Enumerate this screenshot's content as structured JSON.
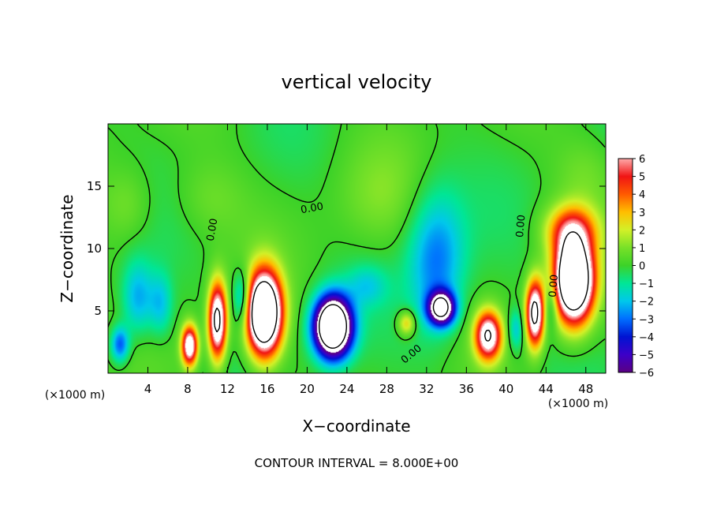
{
  "chart_data": {
    "type": "heatmap",
    "title": "vertical velocity",
    "xlabel": "X−coordinate",
    "ylabel": "Z−coordinate",
    "x_unit_label_left": "(×1000 m)",
    "x_unit_label_right": "(×1000 m)",
    "footer": "CONTOUR INTERVAL = 8.000E+00",
    "xlim": [
      0,
      50
    ],
    "ylim": [
      0,
      20
    ],
    "x_ticks": [
      4,
      8,
      12,
      16,
      20,
      24,
      28,
      32,
      36,
      40,
      44,
      48
    ],
    "y_ticks": [
      5,
      10,
      15
    ],
    "colorbar": {
      "range": [
        -6,
        6
      ],
      "ticks": [
        6,
        5,
        4,
        3,
        2,
        1,
        0,
        -1,
        -2,
        -3,
        -4,
        -5,
        -6
      ],
      "tick_labels": [
        "6",
        "5",
        "4",
        "3",
        "2",
        "1",
        "0",
        "−1",
        "−2",
        "−3",
        "−4",
        "−5",
        "−6"
      ]
    },
    "contour_labels": [
      {
        "text": "0.00",
        "x": 10.5,
        "y": 11.5,
        "rotate": -80
      },
      {
        "text": "0.00",
        "x": 20.5,
        "y": 13.2,
        "rotate": -10
      },
      {
        "text": "0.00",
        "x": 41.5,
        "y": 11.8,
        "rotate": -85
      },
      {
        "text": "0.00",
        "x": 44.8,
        "y": 7.0,
        "rotate": -85
      },
      {
        "text": "0.00",
        "x": 30.5,
        "y": 1.5,
        "rotate": -40
      }
    ],
    "features": [
      {
        "x": 15.7,
        "z": 4.8,
        "sx": 1.7,
        "sz": 3.2,
        "amp": 14
      },
      {
        "x": 11.0,
        "z": 4.2,
        "sx": 0.9,
        "sz": 3.0,
        "amp": 9
      },
      {
        "x": 8.2,
        "z": 2.2,
        "sx": 0.8,
        "sz": 1.6,
        "amp": 8
      },
      {
        "x": 46.8,
        "z": 7.5,
        "sx": 1.9,
        "sz": 3.3,
        "amp": 14
      },
      {
        "x": 46.5,
        "z": 11.5,
        "sx": 2.6,
        "sz": 2.0,
        "amp": 4
      },
      {
        "x": 42.9,
        "z": 4.8,
        "sx": 0.9,
        "sz": 2.6,
        "amp": 9
      },
      {
        "x": 38.2,
        "z": 3.0,
        "sx": 1.3,
        "sz": 1.9,
        "amp": 8
      },
      {
        "x": 30.0,
        "z": 4.0,
        "sx": 0.9,
        "sz": 1.0,
        "amp": 3
      },
      {
        "x": 22.6,
        "z": 3.7,
        "sx": 1.8,
        "sz": 2.3,
        "amp": -14
      },
      {
        "x": 33.5,
        "z": 5.2,
        "sx": 1.3,
        "sz": 1.3,
        "amp": -9
      },
      {
        "x": 33.0,
        "z": 9.0,
        "sx": 2.8,
        "sz": 5.5,
        "amp": -3
      },
      {
        "x": 3.0,
        "z": 6.0,
        "sx": 1.6,
        "sz": 3.0,
        "amp": -2.5
      },
      {
        "x": 1.2,
        "z": 2.3,
        "sx": 0.9,
        "sz": 1.4,
        "amp": -3.5
      },
      {
        "x": 5.3,
        "z": 5.5,
        "sx": 1.2,
        "sz": 2.5,
        "amp": -2
      },
      {
        "x": 13.5,
        "z": 6.0,
        "sx": 0.9,
        "sz": 2.2,
        "amp": -3
      },
      {
        "x": 26.0,
        "z": 7.0,
        "sx": 2.0,
        "sz": 1.6,
        "amp": -1.5
      },
      {
        "x": 41.0,
        "z": 3.5,
        "sx": 0.8,
        "sz": 1.6,
        "amp": -2
      },
      {
        "x": 44.5,
        "z": 5.5,
        "sx": 0.7,
        "sz": 2.0,
        "amp": -2
      },
      {
        "x": 10.0,
        "z": 14.0,
        "sx": 3.5,
        "sz": 3.0,
        "amp": 0.8
      },
      {
        "x": 27.0,
        "z": 14.0,
        "sx": 4.0,
        "sz": 4.0,
        "amp": 0.8
      },
      {
        "x": 2.0,
        "z": 13.5,
        "sx": 2.5,
        "sz": 3.0,
        "amp": 1.0
      },
      {
        "x": 48.0,
        "z": 16.0,
        "sx": 3.0,
        "sz": 3.0,
        "amp": 0.8
      }
    ]
  }
}
